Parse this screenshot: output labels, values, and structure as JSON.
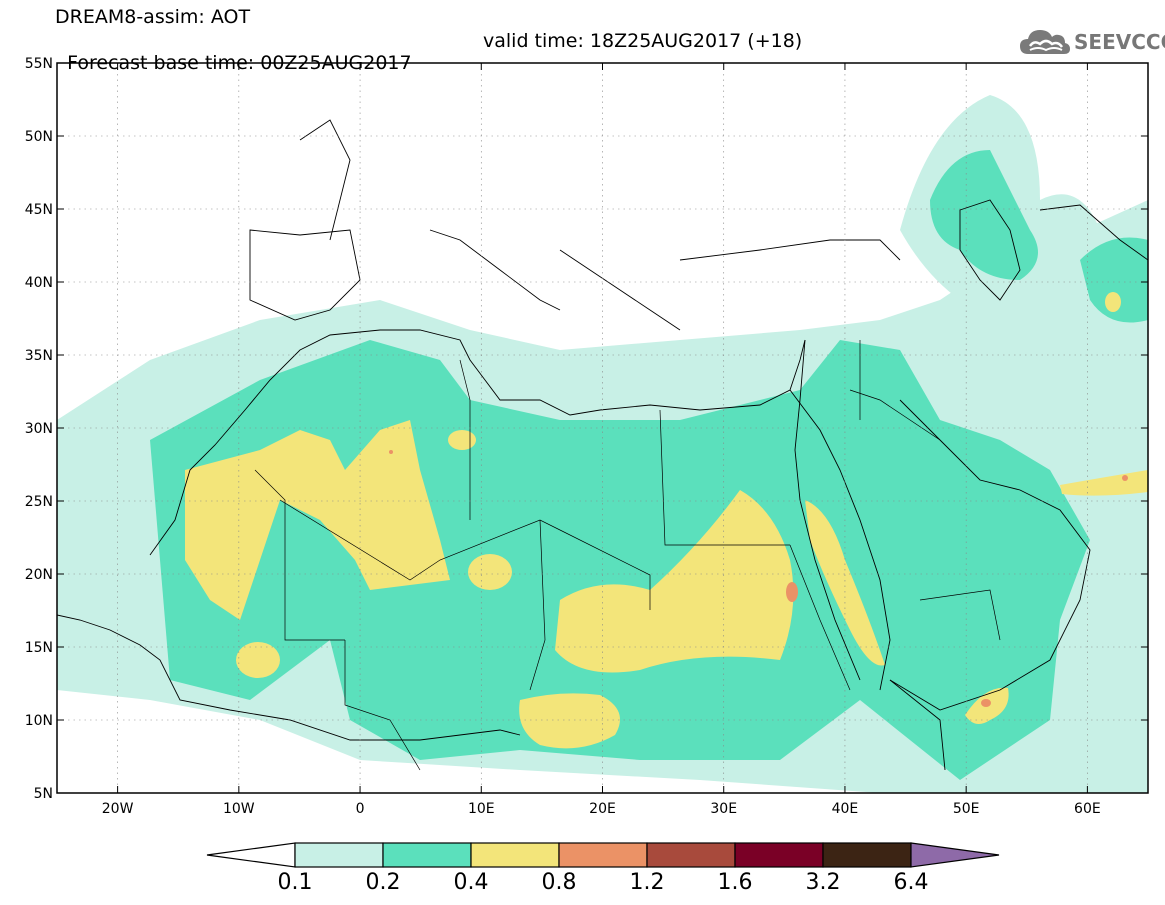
{
  "header": {
    "line1": "DREAM8-assim: AOT",
    "base_time": "Forecast base time: 00Z25AUG2017",
    "valid_time": "valid time: 18Z25AUG2017 (+18)"
  },
  "logo": {
    "text": "SEEVCCC",
    "icon": "cloud-icon",
    "color": "#777777"
  },
  "map": {
    "lon_range": [
      -25,
      65
    ],
    "lat_range": [
      5,
      55
    ],
    "lon_ticks": [
      {
        "lon": -20,
        "label": "20W"
      },
      {
        "lon": -10,
        "label": "10W"
      },
      {
        "lon": 0,
        "label": "0"
      },
      {
        "lon": 10,
        "label": "10E"
      },
      {
        "lon": 20,
        "label": "20E"
      },
      {
        "lon": 30,
        "label": "30E"
      },
      {
        "lon": 40,
        "label": "40E"
      },
      {
        "lon": 50,
        "label": "50E"
      },
      {
        "lon": 60,
        "label": "60E"
      }
    ],
    "lat_ticks": [
      {
        "lat": 5,
        "label": "5N"
      },
      {
        "lat": 10,
        "label": "10N"
      },
      {
        "lat": 15,
        "label": "15N"
      },
      {
        "lat": 20,
        "label": "20N"
      },
      {
        "lat": 25,
        "label": "25N"
      },
      {
        "lat": 30,
        "label": "30N"
      },
      {
        "lat": 35,
        "label": "35N"
      },
      {
        "lat": 40,
        "label": "40N"
      },
      {
        "lat": 45,
        "label": "45N"
      },
      {
        "lat": 50,
        "label": "50N"
      },
      {
        "lat": 55,
        "label": "55N"
      }
    ],
    "grid": true
  },
  "colorbar": {
    "labels": [
      "0.1",
      "0.2",
      "0.4",
      "0.8",
      "1.2",
      "1.6",
      "3.2",
      "6.4"
    ],
    "colors": [
      "#ffffff",
      "#c8f0e6",
      "#5be0bc",
      "#f3e57a",
      "#eb9266",
      "#a84a3c",
      "#7a0026",
      "#3c2414",
      "#8e6aa8"
    ]
  }
}
